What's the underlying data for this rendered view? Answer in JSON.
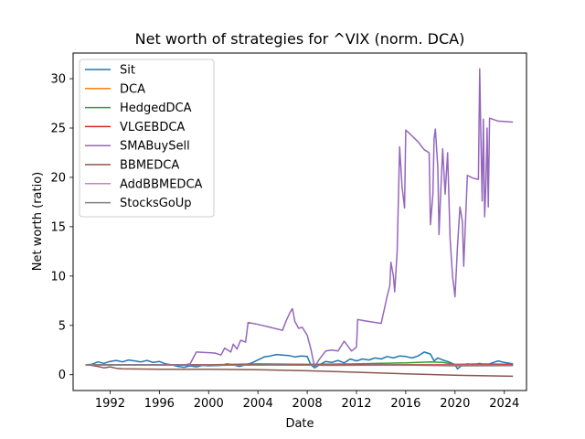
{
  "chart_data": {
    "type": "line",
    "title": "Net worth of strategies for ^VIX (norm. DCA)",
    "xlabel": "Date",
    "ylabel": "Net worth (ratio)",
    "xlim": [
      1989.0,
      2025.8
    ],
    "ylim": [
      -1.6,
      32.6
    ],
    "x_ticks": [
      1992,
      1996,
      2000,
      2004,
      2008,
      2012,
      2016,
      2020,
      2024
    ],
    "y_ticks": [
      0,
      5,
      10,
      15,
      20,
      25,
      30
    ],
    "grid": false,
    "legend_position": "top-left",
    "series": [
      {
        "name": "Sit",
        "color": "#1f77b4",
        "points": [
          [
            1990.0,
            1.0
          ],
          [
            1990.5,
            1.05
          ],
          [
            1991.0,
            1.3
          ],
          [
            1991.5,
            1.15
          ],
          [
            1992.0,
            1.35
          ],
          [
            1992.5,
            1.45
          ],
          [
            1993.0,
            1.3
          ],
          [
            1993.5,
            1.5
          ],
          [
            1994.0,
            1.4
          ],
          [
            1994.5,
            1.3
          ],
          [
            1995.0,
            1.45
          ],
          [
            1995.5,
            1.25
          ],
          [
            1996.0,
            1.35
          ],
          [
            1996.5,
            1.1
          ],
          [
            1997.0,
            1.0
          ],
          [
            1997.5,
            0.85
          ],
          [
            1998.0,
            0.75
          ],
          [
            1998.5,
            0.9
          ],
          [
            1999.0,
            0.8
          ],
          [
            1999.5,
            0.95
          ],
          [
            2000.0,
            0.9
          ],
          [
            2001.0,
            0.95
          ],
          [
            2001.5,
            1.1
          ],
          [
            2002.0,
            1.0
          ],
          [
            2002.5,
            0.85
          ],
          [
            2003.0,
            1.0
          ],
          [
            2003.5,
            1.2
          ],
          [
            2004.0,
            1.5
          ],
          [
            2004.5,
            1.8
          ],
          [
            2005.0,
            1.9
          ],
          [
            2005.5,
            2.05
          ],
          [
            2006.0,
            2.0
          ],
          [
            2006.5,
            1.95
          ],
          [
            2007.0,
            1.8
          ],
          [
            2007.5,
            1.9
          ],
          [
            2008.0,
            1.85
          ],
          [
            2008.3,
            1.0
          ],
          [
            2008.6,
            0.7
          ],
          [
            2009.0,
            1.0
          ],
          [
            2009.5,
            1.35
          ],
          [
            2010.0,
            1.25
          ],
          [
            2010.5,
            1.45
          ],
          [
            2011.0,
            1.2
          ],
          [
            2011.5,
            1.6
          ],
          [
            2012.0,
            1.4
          ],
          [
            2012.5,
            1.6
          ],
          [
            2013.0,
            1.5
          ],
          [
            2013.5,
            1.7
          ],
          [
            2014.0,
            1.6
          ],
          [
            2014.5,
            1.85
          ],
          [
            2015.0,
            1.7
          ],
          [
            2015.5,
            1.9
          ],
          [
            2016.0,
            1.85
          ],
          [
            2016.5,
            1.7
          ],
          [
            2017.0,
            1.9
          ],
          [
            2017.5,
            2.3
          ],
          [
            2018.0,
            2.1
          ],
          [
            2018.3,
            1.4
          ],
          [
            2018.6,
            1.7
          ],
          [
            2019.0,
            1.5
          ],
          [
            2019.5,
            1.3
          ],
          [
            2020.0,
            1.0
          ],
          [
            2020.2,
            0.6
          ],
          [
            2020.5,
            0.9
          ],
          [
            2021.0,
            1.1
          ],
          [
            2021.5,
            1.0
          ],
          [
            2022.0,
            1.15
          ],
          [
            2022.5,
            0.95
          ],
          [
            2023.0,
            1.2
          ],
          [
            2023.5,
            1.4
          ],
          [
            2024.0,
            1.25
          ],
          [
            2024.7,
            1.1
          ]
        ]
      },
      {
        "name": "DCA",
        "color": "#ff7f0e",
        "points": [
          [
            1990.0,
            1.0
          ],
          [
            2024.7,
            1.0
          ]
        ]
      },
      {
        "name": "HedgedDCA",
        "color": "#2ca02c",
        "points": [
          [
            1990.0,
            1.0
          ],
          [
            1994.0,
            1.0
          ],
          [
            2000.0,
            1.0
          ],
          [
            2004.0,
            1.1
          ],
          [
            2008.0,
            1.05
          ],
          [
            2012.0,
            1.1
          ],
          [
            2014.0,
            1.15
          ],
          [
            2016.0,
            1.2
          ],
          [
            2018.0,
            1.3
          ],
          [
            2019.0,
            1.25
          ],
          [
            2020.0,
            1.05
          ],
          [
            2022.0,
            1.1
          ],
          [
            2024.7,
            1.05
          ]
        ]
      },
      {
        "name": "VLGEBDCA",
        "color": "#d62728",
        "points": [
          [
            1990.0,
            1.0
          ],
          [
            2024.7,
            1.0
          ]
        ]
      },
      {
        "name": "SMABuySell",
        "color": "#9467bd",
        "points": [
          [
            1990.0,
            1.0
          ],
          [
            1993.0,
            1.0
          ],
          [
            1996.0,
            1.0
          ],
          [
            1998.0,
            1.0
          ],
          [
            1998.5,
            1.1
          ],
          [
            1999.0,
            2.3
          ],
          [
            2000.5,
            2.2
          ],
          [
            2001.0,
            2.0
          ],
          [
            2001.3,
            2.7
          ],
          [
            2001.8,
            2.3
          ],
          [
            2002.0,
            3.1
          ],
          [
            2002.3,
            2.6
          ],
          [
            2002.6,
            3.5
          ],
          [
            2003.0,
            3.3
          ],
          [
            2003.2,
            5.3
          ],
          [
            2004.0,
            5.1
          ],
          [
            2005.0,
            4.8
          ],
          [
            2006.0,
            4.5
          ],
          [
            2006.3,
            5.5
          ],
          [
            2006.6,
            6.3
          ],
          [
            2006.8,
            6.7
          ],
          [
            2007.0,
            5.4
          ],
          [
            2007.3,
            4.7
          ],
          [
            2007.6,
            4.8
          ],
          [
            2008.0,
            4.0
          ],
          [
            2008.3,
            2.6
          ],
          [
            2008.6,
            0.8
          ],
          [
            2009.0,
            1.6
          ],
          [
            2009.5,
            2.4
          ],
          [
            2010.0,
            2.5
          ],
          [
            2010.5,
            2.4
          ],
          [
            2011.0,
            3.4
          ],
          [
            2011.3,
            2.9
          ],
          [
            2011.6,
            2.4
          ],
          [
            2012.0,
            2.8
          ],
          [
            2012.1,
            5.6
          ],
          [
            2012.5,
            5.5
          ],
          [
            2013.0,
            5.4
          ],
          [
            2014.0,
            5.2
          ],
          [
            2014.5,
            8.0
          ],
          [
            2014.7,
            9.0
          ],
          [
            2014.8,
            11.4
          ],
          [
            2015.0,
            10.0
          ],
          [
            2015.1,
            8.4
          ],
          [
            2015.3,
            12.5
          ],
          [
            2015.5,
            23.1
          ],
          [
            2015.7,
            19.0
          ],
          [
            2015.9,
            16.9
          ],
          [
            2016.0,
            24.8
          ],
          [
            2016.5,
            24.2
          ],
          [
            2017.0,
            23.6
          ],
          [
            2017.5,
            22.8
          ],
          [
            2017.9,
            22.5
          ],
          [
            2018.0,
            15.2
          ],
          [
            2018.2,
            18.3
          ],
          [
            2018.3,
            23.9
          ],
          [
            2018.4,
            24.9
          ],
          [
            2018.6,
            21.0
          ],
          [
            2018.7,
            14.2
          ],
          [
            2018.8,
            17.5
          ],
          [
            2019.0,
            22.9
          ],
          [
            2019.2,
            18.3
          ],
          [
            2019.4,
            22.5
          ],
          [
            2019.6,
            13.8
          ],
          [
            2019.8,
            10.0
          ],
          [
            2020.0,
            7.9
          ],
          [
            2020.2,
            13.0
          ],
          [
            2020.4,
            17.0
          ],
          [
            2020.6,
            15.5
          ],
          [
            2020.7,
            11.0
          ],
          [
            2021.0,
            20.2
          ],
          [
            2021.5,
            19.9
          ],
          [
            2021.9,
            19.8
          ],
          [
            2022.0,
            31.0
          ],
          [
            2022.1,
            24.0
          ],
          [
            2022.2,
            17.6
          ],
          [
            2022.3,
            25.9
          ],
          [
            2022.4,
            16.0
          ],
          [
            2022.5,
            19.0
          ],
          [
            2022.6,
            25.0
          ],
          [
            2022.7,
            17.0
          ],
          [
            2022.8,
            26.0
          ],
          [
            2023.5,
            25.7
          ],
          [
            2024.7,
            25.6
          ]
        ]
      },
      {
        "name": "BBMEDCA",
        "color": "#8c564b",
        "points": [
          [
            1990.0,
            1.0
          ],
          [
            1990.5,
            0.95
          ],
          [
            1991.0,
            0.85
          ],
          [
            1991.5,
            0.7
          ],
          [
            1992.0,
            0.8
          ],
          [
            1992.5,
            0.65
          ],
          [
            1993.0,
            0.6
          ],
          [
            1996.0,
            0.55
          ],
          [
            2000.0,
            0.55
          ],
          [
            2004.0,
            0.5
          ],
          [
            2008.0,
            0.4
          ],
          [
            2012.0,
            0.25
          ],
          [
            2016.0,
            0.1
          ],
          [
            2020.0,
            -0.05
          ],
          [
            2022.0,
            -0.1
          ],
          [
            2024.7,
            -0.15
          ]
        ]
      },
      {
        "name": "AddBBMEDCA",
        "color": "#e377c2",
        "points": [
          [
            1990.0,
            1.0
          ],
          [
            2000.0,
            0.98
          ],
          [
            2010.0,
            0.97
          ],
          [
            2020.0,
            0.96
          ],
          [
            2024.7,
            0.95
          ]
        ]
      },
      {
        "name": "StocksGoUp",
        "color": "#7f7f7f",
        "points": [
          [
            1990.0,
            1.0
          ],
          [
            1995.0,
            1.0
          ],
          [
            2000.0,
            0.95
          ],
          [
            2005.0,
            1.0
          ],
          [
            2010.0,
            0.95
          ],
          [
            2015.0,
            1.0
          ],
          [
            2020.0,
            0.9
          ],
          [
            2024.7,
            0.92
          ]
        ]
      }
    ]
  }
}
